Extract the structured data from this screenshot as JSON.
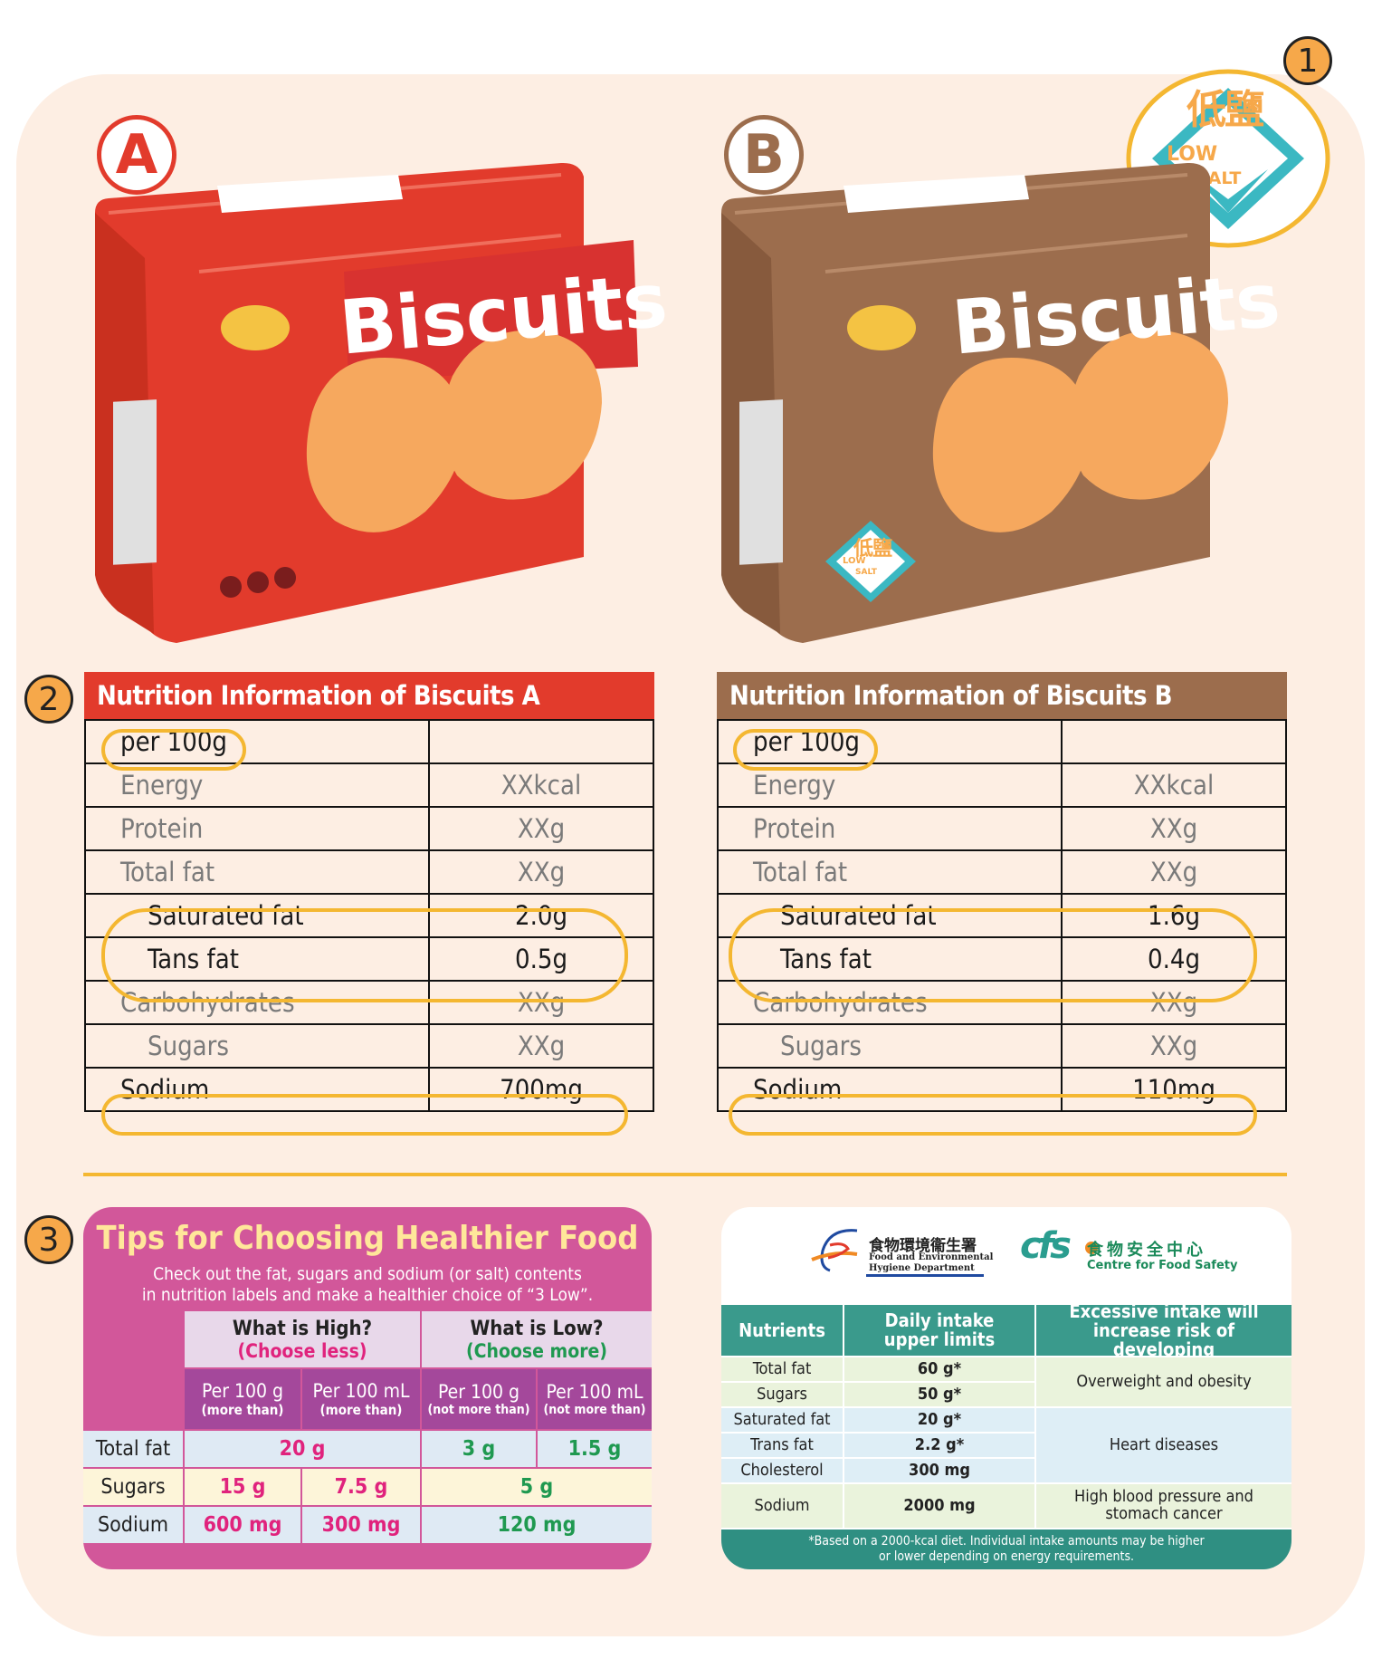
{
  "badges": {
    "a": "A",
    "b": "B",
    "n1": "1",
    "n2": "2",
    "n3": "3"
  },
  "box_a": {
    "label": "Biscuits"
  },
  "box_b": {
    "label": "Biscuits",
    "logo_cn": "低鹽",
    "logo_low": "LOW",
    "logo_salt": "SALT"
  },
  "low_salt_logo": {
    "cn": "低鹽",
    "low": "LOW",
    "salt": "SALT"
  },
  "colors": {
    "red": "#e23b2c",
    "brown": "#9c6d4d",
    "orange": "#f6a84a",
    "pink": "#d2579a",
    "teal": "#3a9a8c"
  },
  "table_a": {
    "title": "Nutrition Information of Biscuits A",
    "basis": "per 100g",
    "rows": [
      {
        "label": "Energy",
        "value": "XXkcal"
      },
      {
        "label": "Protein",
        "value": "XXg"
      },
      {
        "label": "Total fat",
        "value": "XXg"
      },
      {
        "label": "Saturated fat",
        "value": "2.0g"
      },
      {
        "label": "Tans fat",
        "value": "0.5g"
      },
      {
        "label": "Carbohydrates",
        "value": "XXg"
      },
      {
        "label": "Sugars",
        "value": "XXg"
      },
      {
        "label": "Sodium",
        "value": "700mg"
      }
    ]
  },
  "table_b": {
    "title": "Nutrition Information of Biscuits B",
    "basis": "per 100g",
    "rows": [
      {
        "label": "Energy",
        "value": "XXkcal"
      },
      {
        "label": "Protein",
        "value": "XXg"
      },
      {
        "label": "Total fat",
        "value": "XXg"
      },
      {
        "label": "Saturated fat",
        "value": "1.6g"
      },
      {
        "label": "Tans fat",
        "value": "0.4g"
      },
      {
        "label": "Carbohydrates",
        "value": "XXg"
      },
      {
        "label": "Sugars",
        "value": "XXg"
      },
      {
        "label": "Sodium",
        "value": "110mg"
      }
    ]
  },
  "tips": {
    "title": "Tips for Choosing Healthier Food",
    "sub1": "Check out the fat, sugars and sodium (or salt) contents",
    "sub2": "in nutrition labels and make a healthier choice of “3 Low”.",
    "high": "What is High?",
    "high_hint": "(Choose less)",
    "low": "What is Low?",
    "low_hint": "(Choose more)",
    "per100g": "Per 100 g",
    "per100ml": "Per 100 mL",
    "more_than": "(more than)",
    "not_more_than": "(not more than)",
    "rows": [
      {
        "label": "Total fat",
        "high": "20 g",
        "low_g": "3 g",
        "low_ml": "1.5 g"
      },
      {
        "label": "Sugars",
        "high_g": "15 g",
        "high_ml": "7.5 g",
        "low": "5 g"
      },
      {
        "label": "Sodium",
        "high_g": "600 mg",
        "high_ml": "300 mg",
        "low": "120 mg"
      }
    ]
  },
  "info": {
    "fehd_cn": "食物環境衞生署",
    "fehd_en1": "Food and Environmental",
    "fehd_en2": "Hygiene Department",
    "cfs_logo": "cfs",
    "cfs_cn": "食物安全中心",
    "cfs_en": "Centre for Food Safety",
    "col1": "Nutrients",
    "col2": "Daily intake upper limits",
    "col3": "Excessive intake will increase risk of developing",
    "rows": [
      {
        "nutrient": "Total fat",
        "limit": "60 g*"
      },
      {
        "nutrient": "Sugars",
        "limit": "50 g*"
      },
      {
        "nutrient": "Saturated fat",
        "limit": "20 g*"
      },
      {
        "nutrient": "Trans fat",
        "limit": "2.2 g*"
      },
      {
        "nutrient": "Cholesterol",
        "limit": "300 mg"
      },
      {
        "nutrient": "Sodium",
        "limit": "2000 mg"
      }
    ],
    "risk1": "Overweight and obesity",
    "risk2": "Heart diseases",
    "risk3": "High blood pressure and stomach cancer",
    "footnote1": "*Based on a 2000-kcal diet. Individual intake amounts may be higher",
    "footnote2": "or lower depending on energy requirements."
  }
}
